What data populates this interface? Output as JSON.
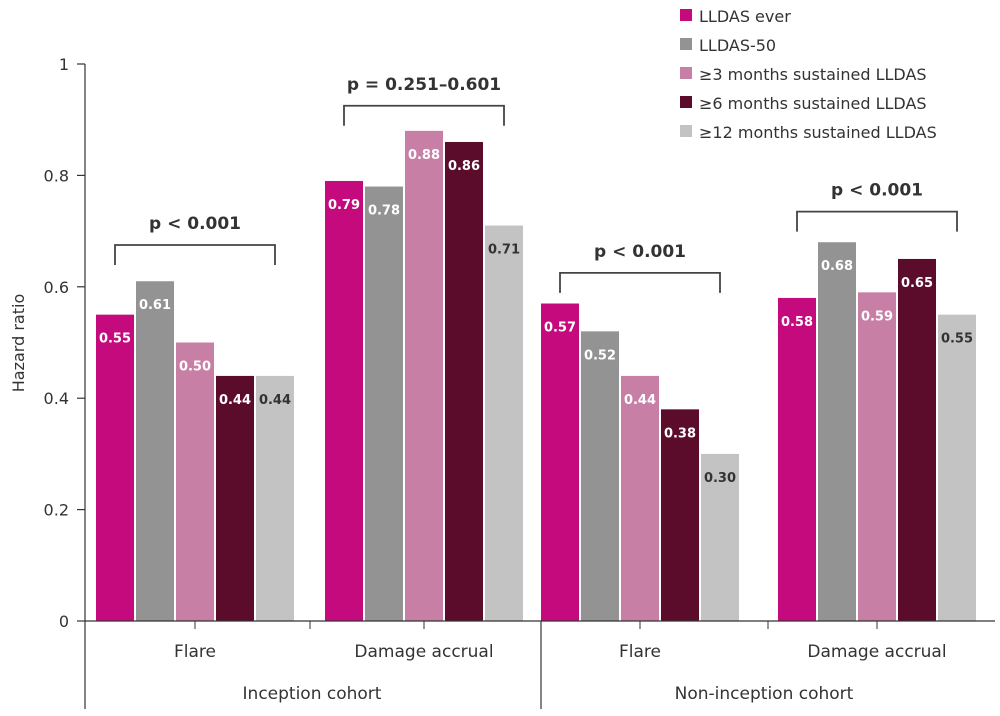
{
  "chart_data": {
    "type": "bar",
    "title": "",
    "xlabel": "",
    "ylabel": "Hazard ratio",
    "ylim": [
      0,
      1
    ],
    "yticks": [
      "0",
      "0.2",
      "0.4",
      "0.6",
      "0.8",
      "1"
    ],
    "ytick_values": [
      0,
      0.2,
      0.4,
      0.6,
      0.8,
      1
    ],
    "grid": false,
    "legend_position": "top-right",
    "categories": [
      "Flare",
      "Damage accrual",
      "Flare",
      "Damage accrual"
    ],
    "groups": [
      {
        "label": "Inception cohort",
        "categories": [
          0,
          1
        ]
      },
      {
        "label": "Non-inception cohort",
        "categories": [
          2,
          3
        ]
      }
    ],
    "series": [
      {
        "name": "LLDAS ever",
        "color": "#c40a7c",
        "label_color": "#ffffff",
        "values": [
          0.55,
          0.79,
          0.57,
          0.58
        ],
        "labels": [
          "0.55",
          "0.79",
          "0.57",
          "0.58"
        ]
      },
      {
        "name": "LLDAS-50",
        "color": "#939393",
        "label_color": "#ffffff",
        "values": [
          0.61,
          0.78,
          0.52,
          0.68
        ],
        "labels": [
          "0.61",
          "0.78",
          "0.52",
          "0.68"
        ]
      },
      {
        "name": "≥3 months sustained LLDAS",
        "color": "#c87fa5",
        "label_color": "#ffffff",
        "values": [
          0.5,
          0.88,
          0.44,
          0.59
        ],
        "labels": [
          "0.50",
          "0.88",
          "0.44",
          "0.59"
        ]
      },
      {
        "name": "≥6 months sustained LLDAS",
        "color": "#5c0c2b",
        "label_color": "#ffffff",
        "values": [
          0.44,
          0.86,
          0.38,
          0.65
        ],
        "labels": [
          "0.44",
          "0.86",
          "0.38",
          "0.65"
        ]
      },
      {
        "name": "≥12 months sustained LLDAS",
        "color": "#c3c3c3",
        "label_color": "#333333",
        "values": [
          0.44,
          0.71,
          0.3,
          0.55
        ],
        "labels": [
          "0.44",
          "0.71",
          "0.30",
          "0.55"
        ]
      }
    ],
    "annotations": [
      {
        "text": "p < 0.001",
        "category": 0,
        "bracket_level": 0.675
      },
      {
        "text": "p = 0.251–0.601",
        "category": 1,
        "bracket_level": 0.925
      },
      {
        "text": "p < 0.001",
        "category": 2,
        "bracket_level": 0.625
      },
      {
        "text": "p < 0.001",
        "category": 3,
        "bracket_level": 0.735
      }
    ]
  }
}
